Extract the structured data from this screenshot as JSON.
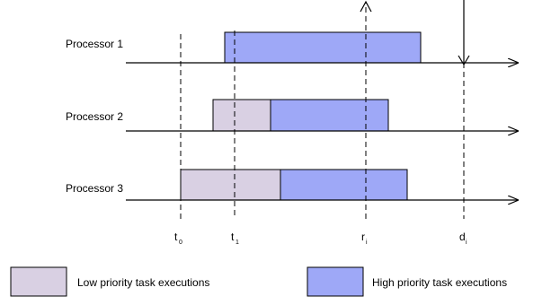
{
  "processors": [
    {
      "label": "Processor 1",
      "segments": [
        {
          "kind": "high",
          "start": 0.0,
          "end": 0.0
        }
      ]
    },
    {
      "label": "Processor 2",
      "segments": [
        {
          "kind": "low",
          "start": 0.0,
          "end": 0.0
        },
        {
          "kind": "high",
          "start": 0.0,
          "end": 0.0
        }
      ]
    },
    {
      "label": "Processor 3",
      "segments": [
        {
          "kind": "low",
          "start": 0.0,
          "end": 0.0
        },
        {
          "kind": "high",
          "start": 0.0,
          "end": 0.0
        }
      ]
    }
  ],
  "markers": [
    {
      "base": "t",
      "sub": "0"
    },
    {
      "base": "t",
      "sub": "1"
    },
    {
      "base": "r",
      "sub": "i"
    },
    {
      "base": "d",
      "sub": "i"
    }
  ],
  "legend": {
    "low": "Low priority task executions",
    "high": "High priority task executions"
  },
  "colors": {
    "low": "#d9d0e3",
    "high": "#9ea8f7",
    "line": "#000000"
  }
}
